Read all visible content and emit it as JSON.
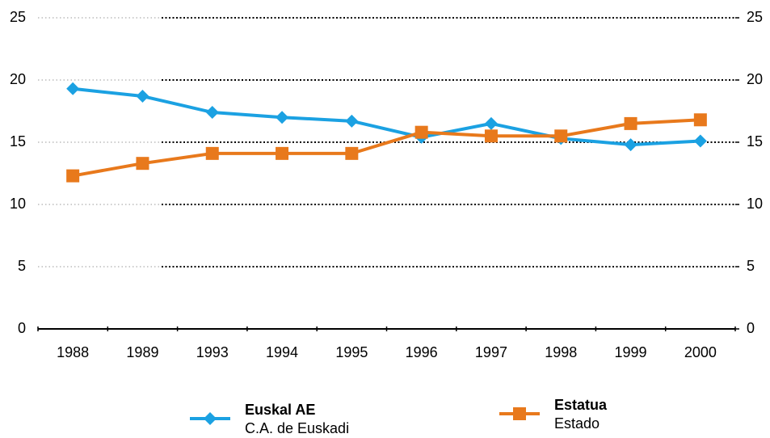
{
  "chart_data": {
    "type": "line",
    "categories": [
      "1988",
      "1989",
      "1993",
      "1994",
      "1995",
      "1996",
      "1997",
      "1998",
      "1999",
      "2000"
    ],
    "series": [
      {
        "name": "Euskal AE",
        "subtitle": "C.A. de Euskadi",
        "color": "#1ba1e2",
        "marker": "diamond",
        "values": [
          19.3,
          18.7,
          17.4,
          17.0,
          16.7,
          15.4,
          16.5,
          15.3,
          14.8,
          15.1
        ]
      },
      {
        "name": "Estatua",
        "subtitle": "Estado",
        "color": "#e8791c",
        "marker": "square",
        "values": [
          12.3,
          13.3,
          14.1,
          14.1,
          14.1,
          15.8,
          15.5,
          15.5,
          16.5,
          16.8
        ]
      }
    ],
    "ylim": [
      0,
      25
    ],
    "yticks": [
      0,
      5,
      10,
      15,
      20,
      25
    ],
    "y2lim": [
      0,
      25
    ],
    "y2ticks": [
      0,
      5,
      10,
      15,
      20,
      25
    ],
    "grid": true
  }
}
